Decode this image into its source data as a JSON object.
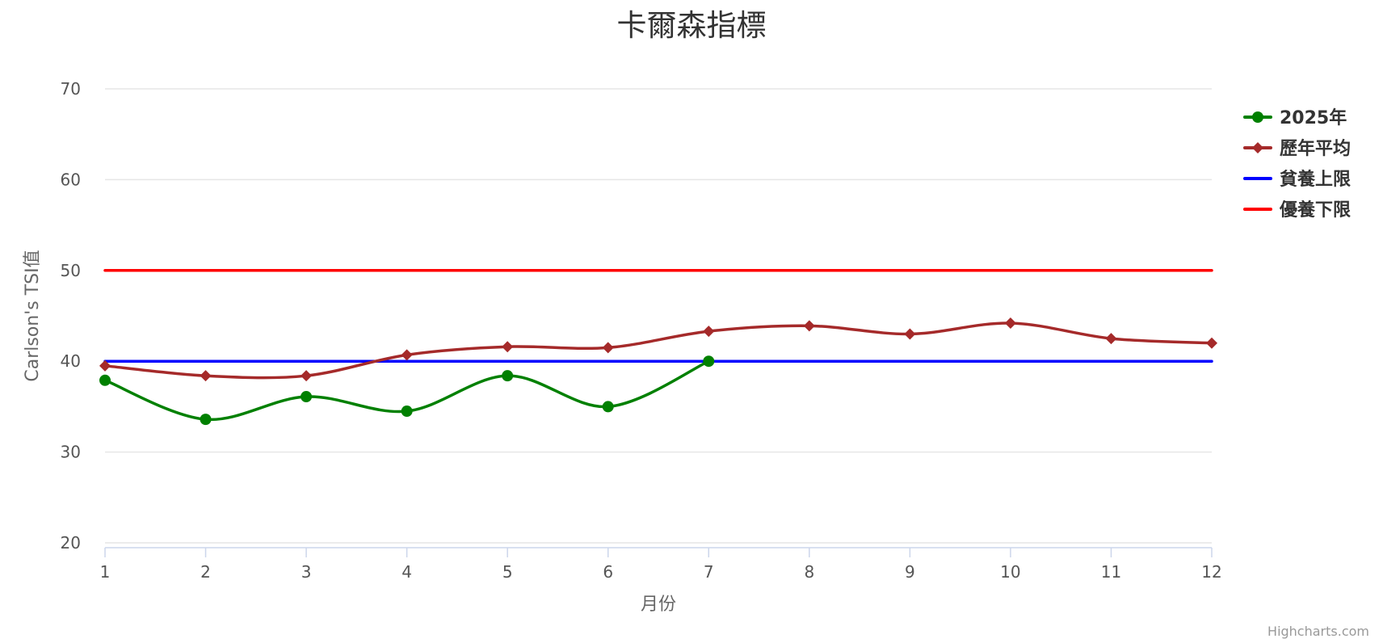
{
  "chart_data": {
    "type": "line",
    "title": "卡爾森指標",
    "xlabel": "月份",
    "ylabel": "Carlson's TSI值",
    "x": [
      1,
      2,
      3,
      4,
      5,
      6,
      7,
      8,
      9,
      10,
      11,
      12
    ],
    "x_tick_labels": [
      "1",
      "2",
      "3",
      "4",
      "5",
      "6",
      "7",
      "8",
      "9",
      "10",
      "11",
      "12"
    ],
    "xlim": [
      1,
      12
    ],
    "ylim": [
      20,
      70
    ],
    "y_ticks": [
      20,
      30,
      40,
      50,
      60,
      70
    ],
    "grid": true,
    "legend_position": "right-top",
    "series": [
      {
        "name": "2025年",
        "color": "#008000",
        "marker": "circle",
        "smooth": true,
        "values": [
          37.9,
          33.6,
          36.1,
          34.5,
          38.4,
          35.0,
          40.0,
          null,
          null,
          null,
          null,
          null
        ]
      },
      {
        "name": "歷年平均",
        "color": "#A52A2A",
        "marker": "diamond",
        "smooth": true,
        "values": [
          39.5,
          38.4,
          38.4,
          40.7,
          41.6,
          41.5,
          43.3,
          43.9,
          43.0,
          44.2,
          42.5,
          42.0
        ]
      },
      {
        "name": "貧養上限",
        "color": "#0000FF",
        "marker": "none",
        "smooth": false,
        "values": [
          40,
          40,
          40,
          40,
          40,
          40,
          40,
          40,
          40,
          40,
          40,
          40
        ]
      },
      {
        "name": "優養下限",
        "color": "#FF0000",
        "marker": "none",
        "smooth": false,
        "values": [
          50,
          50,
          50,
          50,
          50,
          50,
          50,
          50,
          50,
          50,
          50,
          50
        ]
      }
    ]
  },
  "credits": {
    "text": "Highcharts.com"
  }
}
